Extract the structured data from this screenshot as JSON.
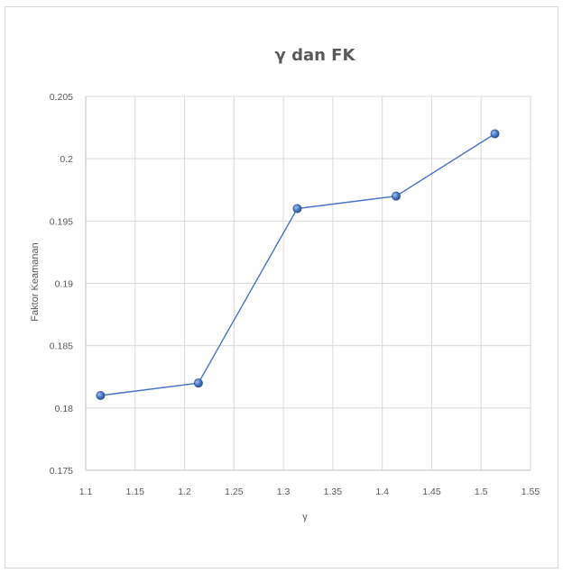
{
  "chart_data": {
    "type": "scatter",
    "title": "γ dan FK",
    "xlabel": "γ",
    "ylabel": "Faktor Keamanan",
    "xlim": [
      1.1,
      1.55
    ],
    "ylim": [
      0.175,
      0.205
    ],
    "x_ticks": [
      "1.1",
      "1.15",
      "1.2",
      "1.25",
      "1.3",
      "1.35",
      "1.4",
      "1.45",
      "1.5",
      "1.55"
    ],
    "y_ticks": [
      "0.175",
      "0.18",
      "0.185",
      "0.19",
      "0.195",
      "0.2",
      "0.205"
    ],
    "grid": true,
    "legend": "none",
    "series": [
      {
        "x": [
          1.115,
          1.214,
          1.314,
          1.414,
          1.514
        ],
        "y": [
          0.181,
          0.182,
          0.196,
          0.197,
          0.202
        ],
        "color": "#4472c4",
        "line": true,
        "marker": "circle"
      }
    ]
  }
}
